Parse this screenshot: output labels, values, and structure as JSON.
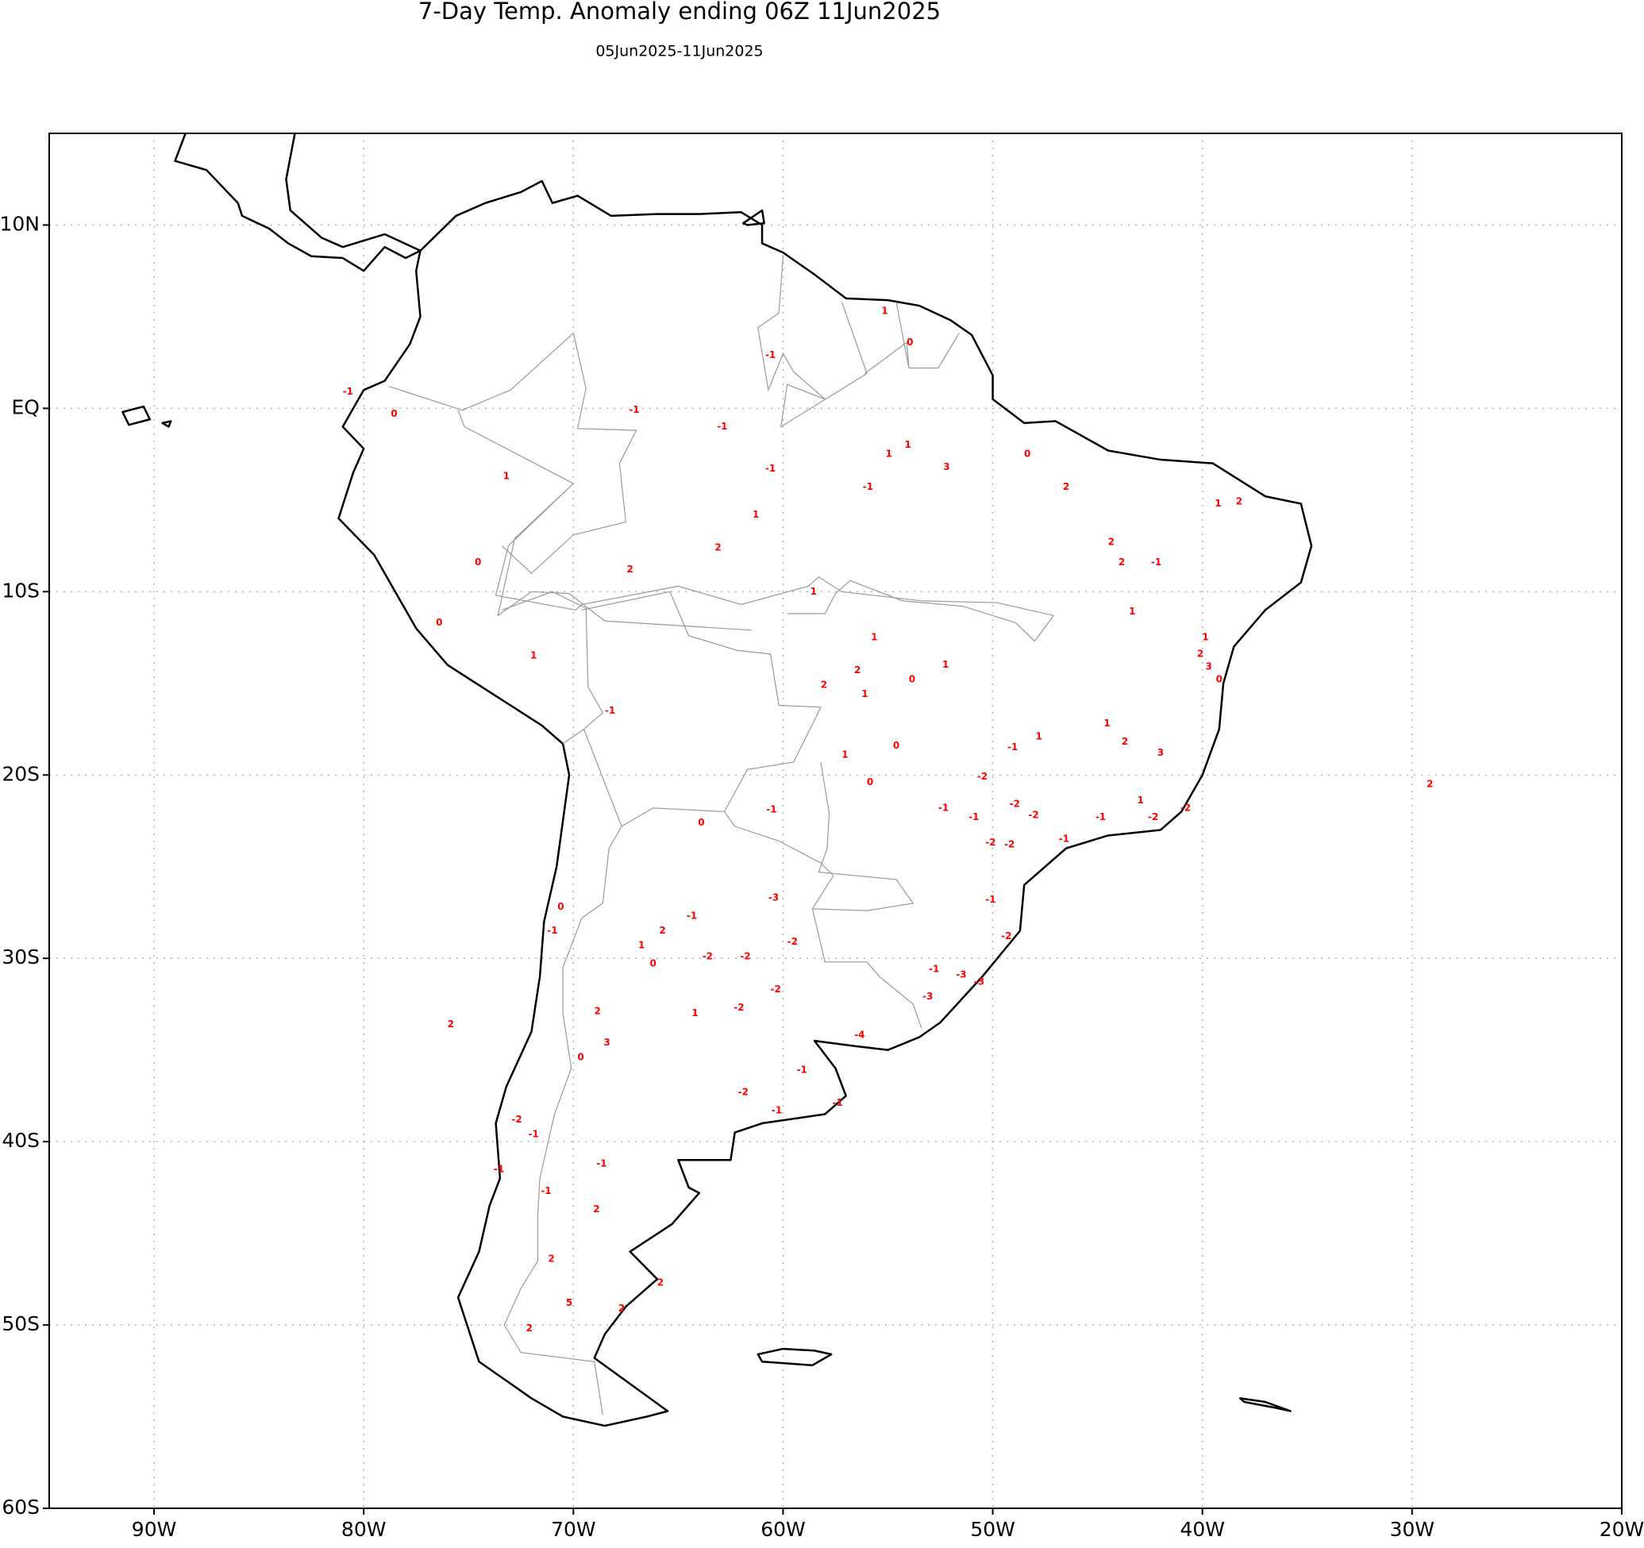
{
  "chart_data": {
    "type": "map",
    "title": "7-Day Temp. Anomaly ending 06Z 11Jun2025",
    "subtitle": "05Jun2025-11Jun2025",
    "xlim": [
      -95,
      -20
    ],
    "ylim": [
      -60,
      15
    ],
    "xticks": [
      {
        "value": -90,
        "label": "90W"
      },
      {
        "value": -80,
        "label": "80W"
      },
      {
        "value": -70,
        "label": "70W"
      },
      {
        "value": -60,
        "label": "60W"
      },
      {
        "value": -50,
        "label": "50W"
      },
      {
        "value": -40,
        "label": "40W"
      },
      {
        "value": -30,
        "label": "30W"
      },
      {
        "value": -20,
        "label": "20W"
      }
    ],
    "yticks": [
      {
        "value": 10,
        "label": "10N"
      },
      {
        "value": 0,
        "label": "EQ"
      },
      {
        "value": -10,
        "label": "10S"
      },
      {
        "value": -20,
        "label": "20S"
      },
      {
        "value": -30,
        "label": "30S"
      },
      {
        "value": -40,
        "label": "40S"
      },
      {
        "value": -50,
        "label": "50S"
      },
      {
        "value": -60,
        "label": "60S"
      }
    ],
    "grid": true,
    "color": "#ff0000",
    "x": [
      -67.1,
      -62.9,
      -60.6,
      -55.95,
      -54.95,
      -54.05,
      -52.2,
      -48.35,
      -46.5,
      -61.3,
      -63.1,
      -67.3,
      -73.2,
      -58.55,
      -55.65,
      -56.45,
      -58.05,
      -56.1,
      -53.85,
      -52.25,
      -43.35,
      -39.25,
      -38.25,
      -44.35,
      -43.85,
      -42.2,
      -39.85,
      -40.1,
      -39.7,
      -39.2,
      -42.95,
      -42.0,
      -43.7,
      -44.55,
      -47.8,
      -49.05,
      -50.5,
      -48.95,
      -48.05,
      -49.2,
      -50.1,
      -46.6,
      -44.85,
      -42.35,
      -40.8,
      -50.9,
      -52.35,
      -54.6,
      -55.85,
      -57.05,
      -60.55,
      -60.45,
      -64.35,
      -65.75,
      -66.75,
      -66.2,
      -63.6,
      -61.8,
      -59.55,
      -60.35,
      -62.1,
      -64.2,
      -68.4,
      -68.85,
      -69.65,
      -68.65,
      -68.9,
      -71.05,
      -70.2,
      -72.1,
      -75.85,
      -57.4,
      -60.3,
      -61.9,
      -59.1,
      -65.85,
      -67.7,
      -53.1,
      -56.35,
      -52.8,
      -51.5,
      -50.65,
      -49.35,
      -50.1,
      -29.15,
      -80.75,
      -78.55,
      -74.55,
      -76.4,
      -71.9,
      -68.25,
      -63.9,
      -70.6,
      -71.0,
      -72.7,
      -71.9,
      -73.55,
      -71.3,
      -60.6,
      -53.95,
      -55.15
    ],
    "y": [
      -0.1,
      -1.0,
      -3.3,
      -4.3,
      -2.5,
      -2.0,
      -3.2,
      -2.5,
      -4.3,
      -5.8,
      -7.6,
      -8.8,
      -3.7,
      -10.0,
      -12.5,
      -14.3,
      -15.1,
      -15.6,
      -14.8,
      -14.0,
      -11.1,
      -5.2,
      -5.1,
      -7.3,
      -8.4,
      -8.4,
      -12.5,
      -13.4,
      -14.1,
      -14.8,
      -21.4,
      -18.8,
      -18.2,
      -17.2,
      -17.9,
      -18.5,
      -20.1,
      -21.6,
      -22.2,
      -23.8,
      -23.7,
      -23.5,
      -22.3,
      -22.3,
      -21.8,
      -22.3,
      -21.8,
      -18.4,
      -20.4,
      -18.9,
      -21.9,
      -26.7,
      -27.7,
      -28.5,
      -29.3,
      -30.3,
      -29.9,
      -29.9,
      -29.1,
      -31.7,
      -32.7,
      -33.0,
      -34.6,
      -32.9,
      -35.4,
      -41.2,
      -43.7,
      -46.4,
      -48.8,
      -50.2,
      -33.6,
      -37.9,
      -38.3,
      -37.3,
      -36.1,
      -47.7,
      -49.1,
      -32.1,
      -34.2,
      -30.6,
      -30.9,
      -31.3,
      -28.8,
      -26.8,
      -20.5,
      0.9,
      -0.3,
      -8.4,
      -11.7,
      -13.5,
      -16.5,
      -22.6,
      -27.2,
      -28.5,
      -38.8,
      -39.6,
      -41.5,
      -42.7,
      2.9,
      3.6,
      5.3
    ],
    "values": [
      -1,
      -1,
      -1,
      -1,
      1,
      1,
      3,
      0,
      2,
      1,
      2,
      2,
      1,
      1,
      1,
      2,
      2,
      1,
      0,
      1,
      1,
      1,
      2,
      2,
      2,
      -1,
      1,
      2,
      3,
      0,
      1,
      3,
      2,
      1,
      1,
      -1,
      -2,
      -2,
      -2,
      -2,
      -2,
      -1,
      -1,
      -2,
      -2,
      -1,
      -1,
      0,
      0,
      1,
      -1,
      -3,
      -1,
      2,
      1,
      0,
      -2,
      -2,
      -2,
      -2,
      -2,
      1,
      3,
      2,
      0,
      -1,
      2,
      2,
      5,
      2,
      2,
      -1,
      -1,
      -2,
      -1,
      2,
      2,
      -3,
      -4,
      -1,
      -3,
      -3,
      -2,
      -1,
      2,
      -1,
      0,
      0,
      0,
      1,
      -1,
      0,
      0,
      -1,
      -2,
      -1,
      -1,
      -1,
      -1,
      0,
      1
    ]
  }
}
